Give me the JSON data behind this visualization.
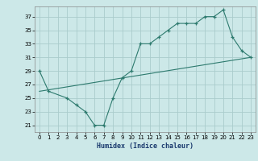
{
  "title": "",
  "xlabel": "Humidex (Indice chaleur)",
  "bg_color": "#cce8e8",
  "grid_color": "#aacccc",
  "line_color": "#2d7a6e",
  "xlim": [
    -0.5,
    23.5
  ],
  "ylim": [
    20.0,
    38.5
  ],
  "yticks": [
    21,
    23,
    25,
    27,
    29,
    31,
    33,
    35,
    37
  ],
  "xticks": [
    0,
    1,
    2,
    3,
    4,
    5,
    6,
    7,
    8,
    9,
    10,
    11,
    12,
    13,
    14,
    15,
    16,
    17,
    18,
    19,
    20,
    21,
    22,
    23
  ],
  "curve1_x": [
    0,
    1,
    3,
    4,
    5,
    6,
    7,
    8,
    9,
    10,
    11,
    12,
    13,
    14,
    15,
    16,
    17,
    18,
    19,
    20,
    21,
    22,
    23
  ],
  "curve1_y": [
    29,
    26,
    25,
    24,
    23,
    21,
    21,
    25,
    28,
    29,
    33,
    33,
    34,
    35,
    36,
    36,
    36,
    37,
    37,
    38,
    34,
    32,
    31
  ],
  "curve2_x": [
    0,
    23
  ],
  "curve2_y": [
    26,
    31
  ]
}
